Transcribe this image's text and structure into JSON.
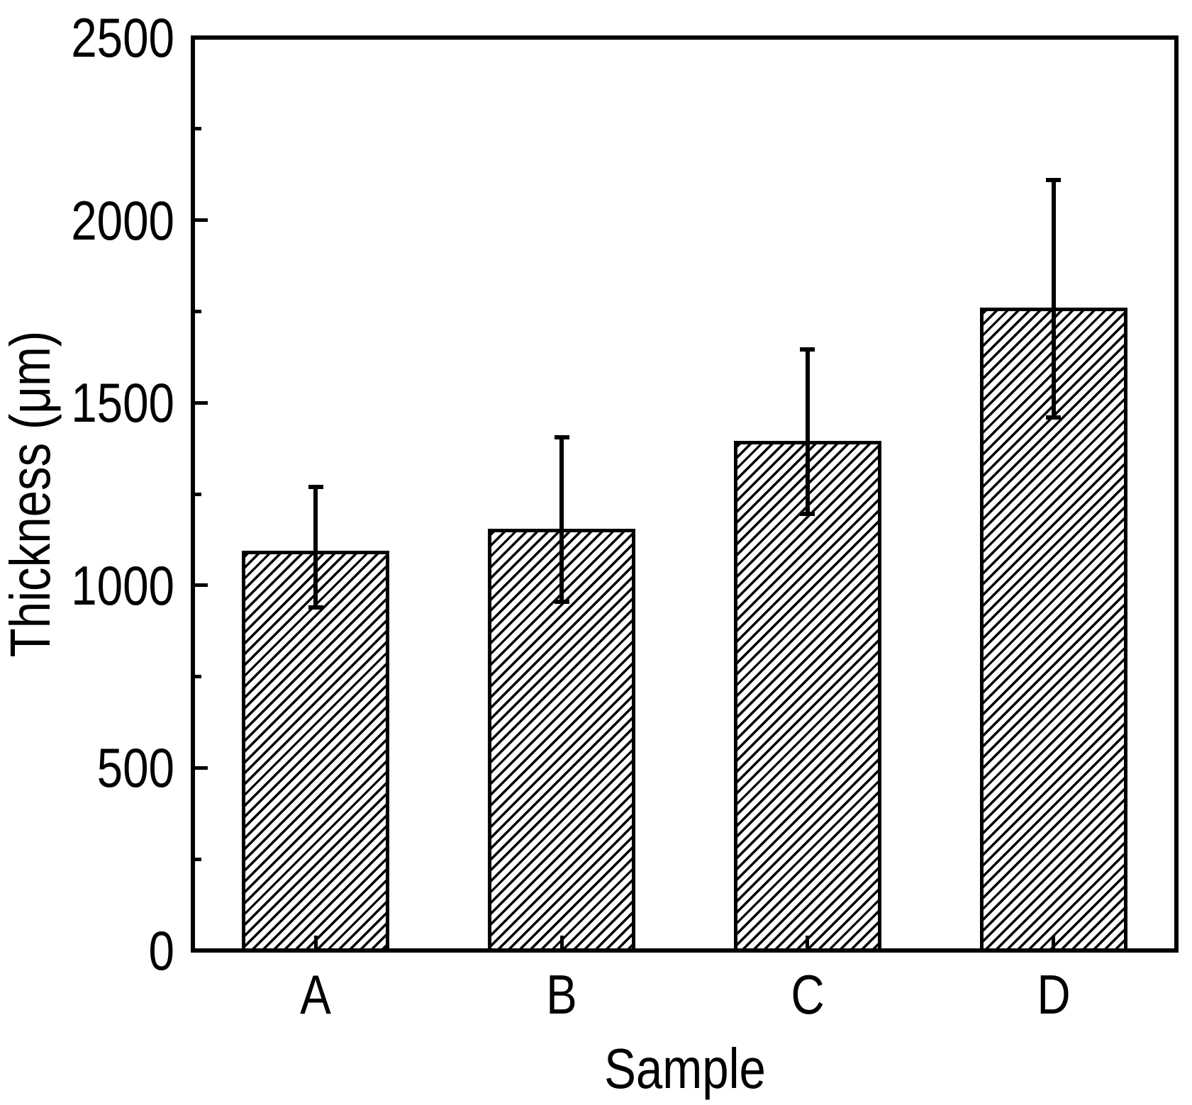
{
  "figure": {
    "background": "#ffffff",
    "ink_color": "#000000"
  },
  "chart_data": {
    "type": "bar",
    "title": "",
    "xlabel": "Sample",
    "ylabel": "Thickness (μm)",
    "categories": [
      "A",
      "B",
      "C",
      "D"
    ],
    "values": [
      1095,
      1155,
      1395,
      1760
    ],
    "error_plus": [
      175,
      250,
      250,
      350
    ],
    "error_minus": [
      155,
      200,
      200,
      300
    ],
    "ylim": [
      0,
      2500
    ],
    "yticks": [
      0,
      500,
      1000,
      1500,
      2000,
      2500
    ],
    "ytick_labels": [
      "0",
      "500",
      "1000",
      "1500",
      "2000",
      "2500"
    ],
    "minor_ytick_interval": 250,
    "tick_direction": "in",
    "bar_fill": "diagonal-hatch",
    "bar_hatch_angle_deg": 45,
    "bar_edge_color": "#000000",
    "grid": false,
    "legend_position": "none",
    "frame": "full-box"
  }
}
